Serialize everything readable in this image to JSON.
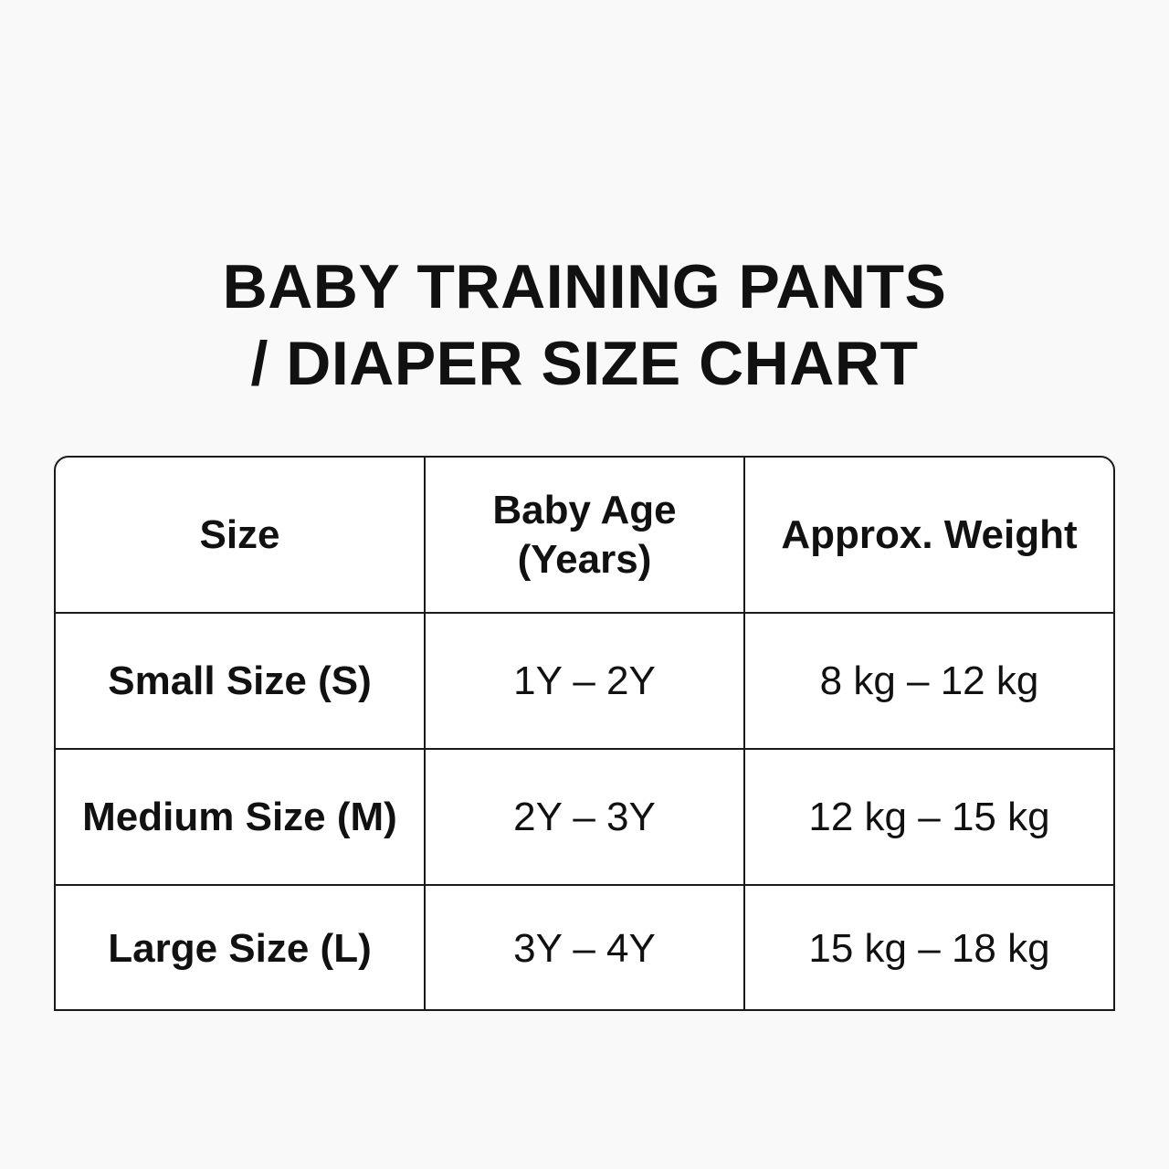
{
  "title": {
    "line1": "BABY TRAINING PANTS",
    "line2": "/ DIAPER SIZE CHART"
  },
  "table": {
    "headers": {
      "size": "Size",
      "age_line1": "Baby Age",
      "age_line2": "(Years)",
      "weight": "Approx. Weight"
    },
    "rows": [
      {
        "size": "Small Size (S)",
        "age": "1Y – 2Y",
        "weight": "8 kg – 12 kg"
      },
      {
        "size": "Medium Size (M)",
        "age": "2Y – 3Y",
        "weight": "12 kg – 15 kg"
      },
      {
        "size": "Large Size (L)",
        "age": "3Y – 4Y",
        "weight": "15 kg – 18 kg"
      }
    ]
  }
}
